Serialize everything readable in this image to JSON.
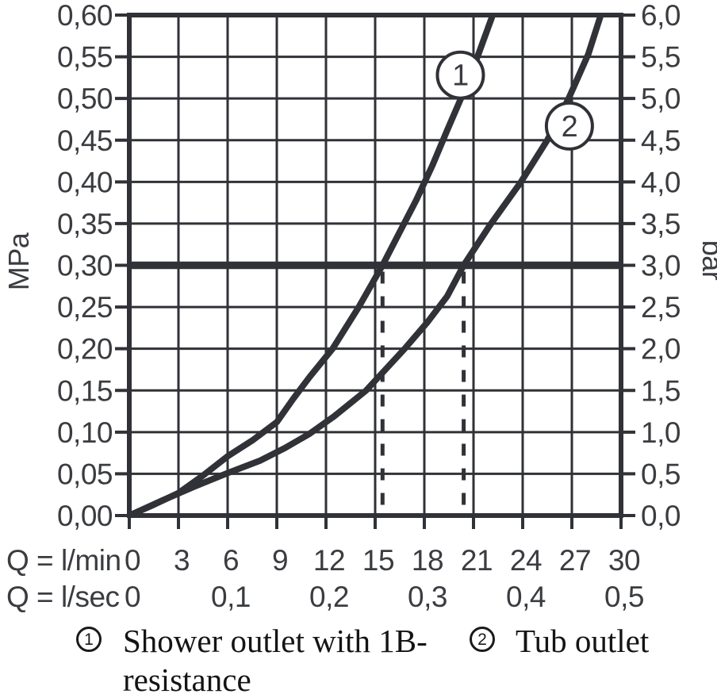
{
  "chart_data": {
    "type": "line",
    "title": "",
    "colors": {
      "ink": "#303237",
      "text": "#3a3c40",
      "background": "#ffffff"
    },
    "x_axis": {
      "row1_label": "Q = l/min",
      "row2_label": "Q = l/sec",
      "min": 0,
      "max": 30,
      "step": 3,
      "ticks_lmin": [
        "0",
        "3",
        "6",
        "9",
        "12",
        "15",
        "18",
        "21",
        "24",
        "27",
        "30"
      ],
      "ticks_lsec": [
        {
          "label": "0",
          "q": 0
        },
        {
          "label": "0,1",
          "q": 6
        },
        {
          "label": "0,2",
          "q": 12
        },
        {
          "label": "0,3",
          "q": 18
        },
        {
          "label": "0,4",
          "q": 24
        },
        {
          "label": "0,5",
          "q": 30
        }
      ]
    },
    "y_axis_left": {
      "unit": "MPa",
      "min": 0,
      "max": 0.6,
      "step": 0.05,
      "ticks": [
        "0,60",
        "0,55",
        "0,50",
        "0,45",
        "0,40",
        "0,35",
        "0,30",
        "0,25",
        "0,20",
        "0,15",
        "0,10",
        "0,05",
        "0,00"
      ]
    },
    "y_axis_right": {
      "unit": "bar",
      "min": 0,
      "max": 6.0,
      "step": 0.5,
      "ticks": [
        "6,0",
        "5,5",
        "5,0",
        "4,5",
        "4,0",
        "3,5",
        "3,0",
        "2,5",
        "2,0",
        "1,5",
        "1,0",
        "0,5",
        "0,0"
      ]
    },
    "grid": true,
    "series": [
      {
        "id": "1",
        "name": "Shower outlet with 1B-resistance",
        "marker": {
          "label": "1",
          "q": 20.2,
          "p": 0.528
        },
        "points": [
          [
            0,
            0
          ],
          [
            1.5,
            0.013
          ],
          [
            3,
            0.027
          ],
          [
            4.5,
            0.048
          ],
          [
            6,
            0.071
          ],
          [
            7.5,
            0.09
          ],
          [
            9,
            0.112
          ],
          [
            10,
            0.14
          ],
          [
            11,
            0.166
          ],
          [
            12.4,
            0.2
          ],
          [
            14,
            0.25
          ],
          [
            15.45,
            0.3
          ],
          [
            16.5,
            0.34
          ],
          [
            17.5,
            0.378
          ],
          [
            18.5,
            0.42
          ],
          [
            19.4,
            0.462
          ],
          [
            20.3,
            0.503
          ],
          [
            21.3,
            0.553
          ],
          [
            22.3,
            0.607
          ]
        ]
      },
      {
        "id": "2",
        "name": "Tub outlet",
        "marker": {
          "label": "2",
          "q": 26.85,
          "p": 0.467
        },
        "points": [
          [
            0,
            0
          ],
          [
            2,
            0.018
          ],
          [
            4,
            0.035
          ],
          [
            6,
            0.051
          ],
          [
            8,
            0.066
          ],
          [
            9.5,
            0.081
          ],
          [
            11,
            0.098
          ],
          [
            12.5,
            0.119
          ],
          [
            14.45,
            0.15
          ],
          [
            16.8,
            0.2
          ],
          [
            18.2,
            0.232
          ],
          [
            19.4,
            0.263
          ],
          [
            20.4,
            0.3
          ],
          [
            22,
            0.348
          ],
          [
            23.9,
            0.4
          ],
          [
            25.5,
            0.45
          ],
          [
            26.8,
            0.5
          ],
          [
            28.0,
            0.553
          ],
          [
            28.85,
            0.605
          ]
        ]
      }
    ],
    "annotations": {
      "pressure_line": {
        "mpa": 0.3,
        "bar": 3.0
      },
      "dashed_flow_lines": [
        {
          "q": 15.45
        },
        {
          "q": 20.4
        }
      ]
    }
  },
  "legend": {
    "items": [
      {
        "symbol": "1",
        "lines": [
          "Shower outlet with 1B-",
          "resistance"
        ]
      },
      {
        "symbol": "2",
        "lines": [
          "Tub outlet"
        ]
      }
    ]
  }
}
